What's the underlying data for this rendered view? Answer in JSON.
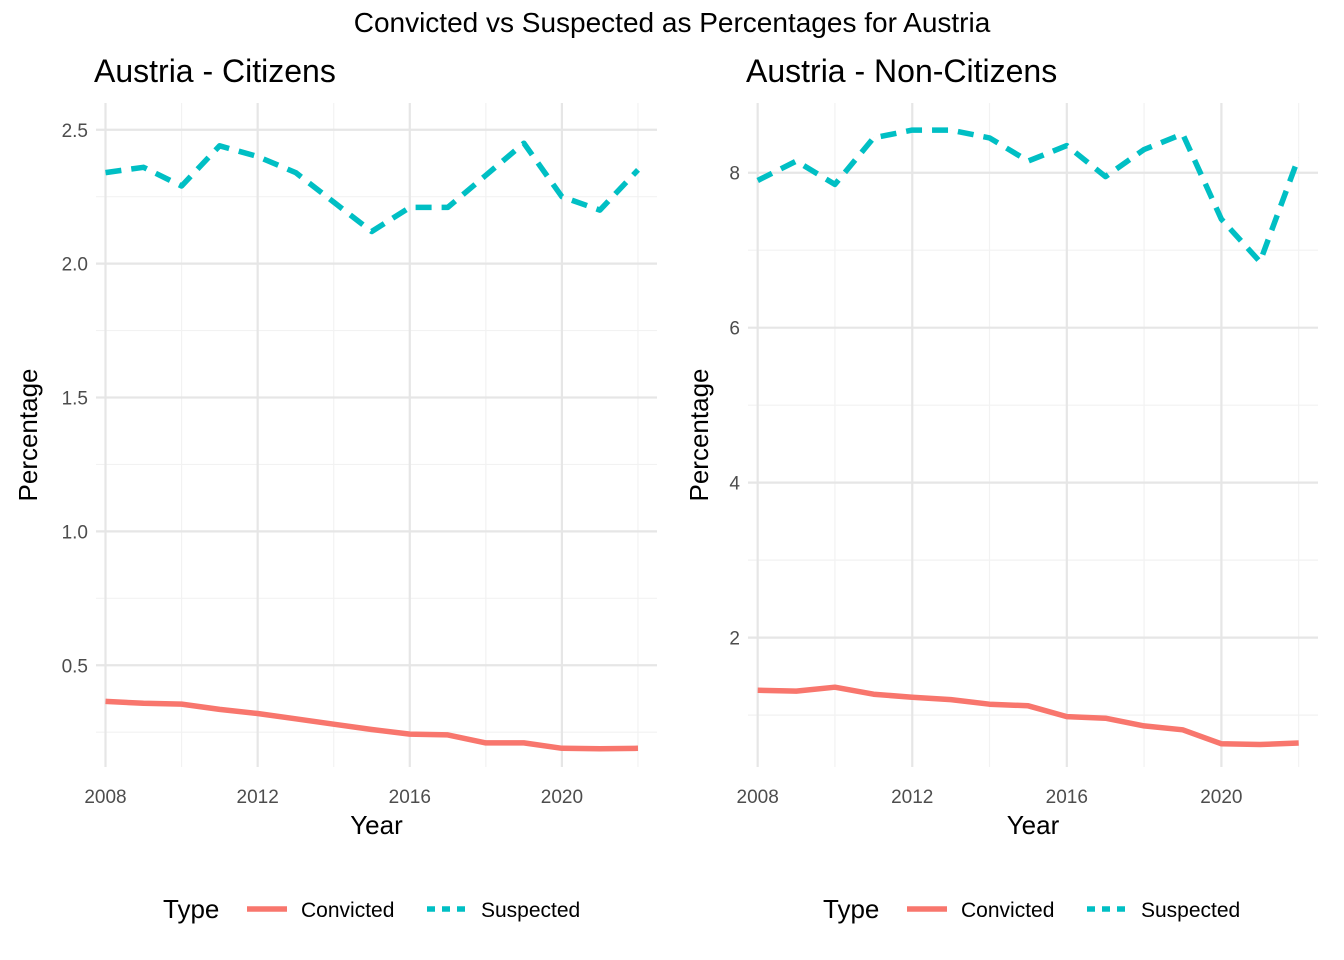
{
  "figure_title": "Convicted vs Suspected as Percentages for Austria",
  "colors": {
    "convicted": "#F8766D",
    "suspected": "#00BFC4",
    "grid_major": "#e6e6e6",
    "grid_minor": "#f2f2f2"
  },
  "chart_data": [
    {
      "type": "line",
      "title": "Austria - Citizens",
      "xlabel": "Year",
      "ylabel": "Percentage",
      "x": [
        2008,
        2009,
        2010,
        2011,
        2012,
        2013,
        2014,
        2015,
        2016,
        2017,
        2018,
        2019,
        2020,
        2021,
        2022
      ],
      "xlim": [
        2007.75,
        2022.5
      ],
      "ylim": [
        0.12,
        2.6
      ],
      "xticks": [
        2008,
        2012,
        2016,
        2020
      ],
      "xtick_labels": [
        "2008",
        "2012",
        "2016",
        "2020"
      ],
      "yticks": [
        0.5,
        1.0,
        1.5,
        2.0,
        2.5
      ],
      "ytick_labels": [
        "0.5",
        "1.0",
        "1.5",
        "2.0",
        "2.5"
      ],
      "grid": true,
      "legend_position": "bottom",
      "legend_title": "Type",
      "series": [
        {
          "name": "Convicted",
          "linestyle": "solid",
          "values": [
            0.365,
            0.358,
            0.355,
            0.335,
            0.32,
            0.3,
            0.28,
            0.26,
            0.243,
            0.24,
            0.21,
            0.21,
            0.19,
            0.188,
            0.19
          ]
        },
        {
          "name": "Suspected",
          "linestyle": "dashed",
          "values": [
            2.34,
            2.36,
            2.29,
            2.44,
            2.4,
            2.34,
            2.23,
            2.12,
            2.21,
            2.21,
            2.33,
            2.45,
            2.25,
            2.2,
            2.35
          ]
        }
      ]
    },
    {
      "type": "line",
      "title": "Austria - Non-Citizens",
      "xlabel": "Year",
      "ylabel": "Percentage",
      "x": [
        2008,
        2009,
        2010,
        2011,
        2012,
        2013,
        2014,
        2015,
        2016,
        2017,
        2018,
        2019,
        2020,
        2021,
        2022
      ],
      "xlim": [
        2007.75,
        2022.5
      ],
      "ylim": [
        0.33,
        8.9
      ],
      "xticks": [
        2008,
        2012,
        2016,
        2020
      ],
      "xtick_labels": [
        "2008",
        "2012",
        "2016",
        "2020"
      ],
      "yticks": [
        2,
        4,
        6,
        8
      ],
      "ytick_labels": [
        "2",
        "4",
        "6",
        "8"
      ],
      "grid": true,
      "legend_position": "bottom",
      "legend_title": "Type",
      "series": [
        {
          "name": "Convicted",
          "linestyle": "solid",
          "values": [
            1.32,
            1.31,
            1.36,
            1.27,
            1.23,
            1.2,
            1.14,
            1.12,
            0.98,
            0.96,
            0.86,
            0.81,
            0.63,
            0.62,
            0.64
          ]
        },
        {
          "name": "Suspected",
          "linestyle": "dashed",
          "values": [
            7.9,
            8.15,
            7.85,
            8.45,
            8.55,
            8.55,
            8.45,
            8.15,
            8.35,
            7.95,
            8.3,
            8.5,
            7.4,
            6.85,
            8.2
          ]
        }
      ]
    }
  ]
}
